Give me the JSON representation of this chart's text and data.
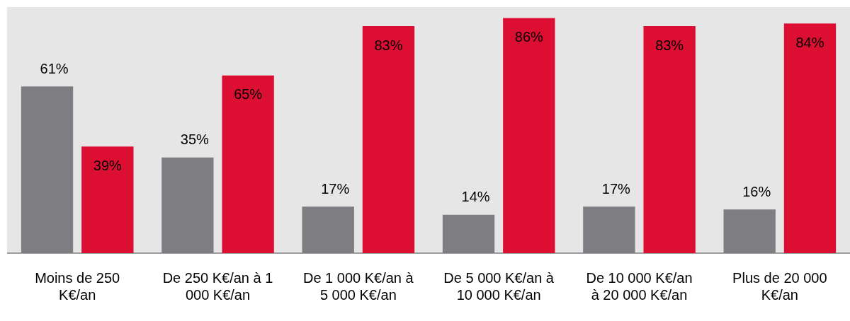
{
  "chart_data": {
    "type": "bar",
    "categories": [
      "Moins de 250 K€/an",
      "De 250 K€/an à 1 000 K€/an",
      "De 1 000 K€/an à 5 000 K€/an",
      "De 5 000 K€/an à 10 000 K€/an",
      "De 10 000 K€/an à 20 000 K€/an",
      "Plus de 20 000 K€/an"
    ],
    "series": [
      {
        "color": "#7e7e82",
        "values": [
          61,
          35,
          17,
          14,
          17,
          16
        ],
        "value_labels": [
          "61%",
          "35%",
          "17%",
          "14%",
          "17%",
          "16%"
        ]
      },
      {
        "color": "#dc0f32",
        "values": [
          39,
          65,
          83,
          86,
          83,
          84
        ],
        "value_labels": [
          "39%",
          "65%",
          "83%",
          "86%",
          "83%",
          "84%"
        ]
      }
    ],
    "grid": false,
    "legend": false
  }
}
